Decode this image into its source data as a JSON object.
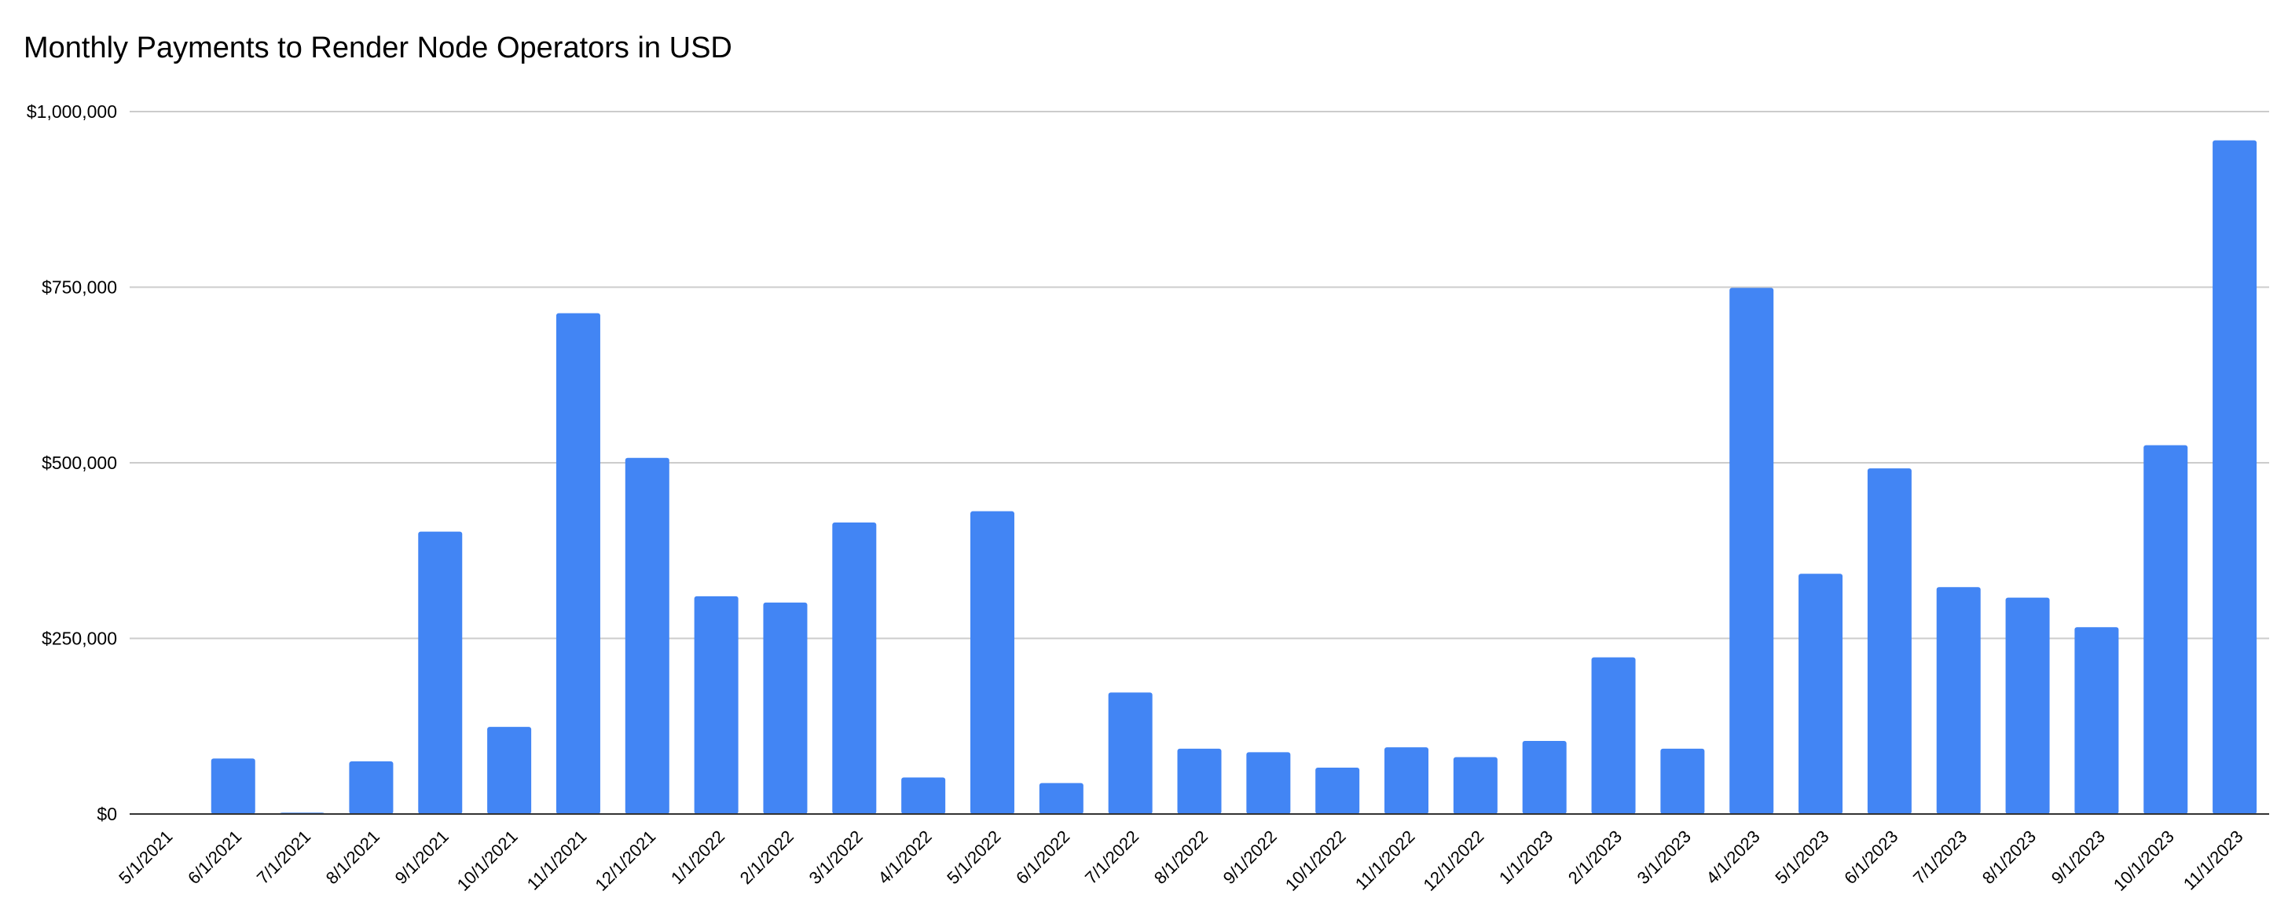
{
  "chart_data": {
    "type": "bar",
    "title": "Monthly Payments to Render Node Operators in USD",
    "xlabel": "",
    "ylabel": "",
    "ylim": [
      0,
      1000000
    ],
    "yticks": [
      {
        "value": 0,
        "label": "$0"
      },
      {
        "value": 250000,
        "label": "$250,000"
      },
      {
        "value": 500000,
        "label": "$500,000"
      },
      {
        "value": 750000,
        "label": "$750,000"
      },
      {
        "value": 1000000,
        "label": "$1,000,000"
      }
    ],
    "grid": true,
    "legend": "none",
    "bar_color": "#4285f4",
    "categories": [
      "5/1/2021",
      "6/1/2021",
      "7/1/2021",
      "8/1/2021",
      "9/1/2021",
      "10/1/2021",
      "11/1/2021",
      "12/1/2021",
      "1/1/2022",
      "2/1/2022",
      "3/1/2022",
      "4/1/2022",
      "5/1/2022",
      "6/1/2022",
      "7/1/2022",
      "8/1/2022",
      "9/1/2022",
      "10/1/2022",
      "11/1/2022",
      "12/1/2022",
      "1/1/2023",
      "2/1/2023",
      "3/1/2023",
      "4/1/2023",
      "5/1/2023",
      "6/1/2023",
      "7/1/2023",
      "8/1/2023",
      "9/1/2023",
      "10/1/2023",
      "11/1/2023"
    ],
    "values": [
      0,
      79000,
      2000,
      75000,
      402000,
      124000,
      713000,
      507000,
      310000,
      301000,
      415000,
      52000,
      431000,
      44000,
      173000,
      93000,
      88000,
      66000,
      95000,
      81000,
      104000,
      223000,
      93000,
      749000,
      342000,
      492000,
      323000,
      308000,
      266000,
      525000,
      959000
    ]
  }
}
